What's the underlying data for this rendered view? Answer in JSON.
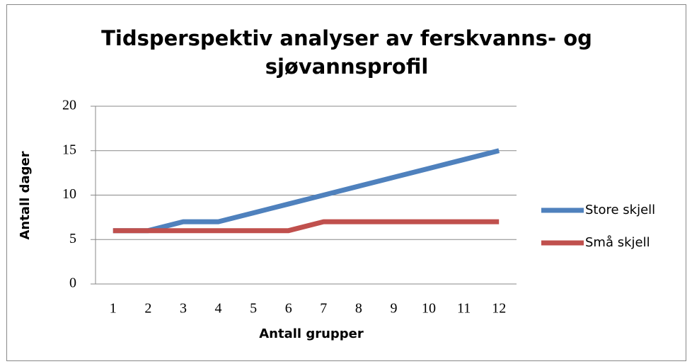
{
  "chart_data": {
    "type": "line",
    "title": "Tidsperspektiv analyser av ferskvanns- og sjøvannsprofil",
    "x_label": "Antall grupper",
    "y_label": "Antall dager",
    "categories": [
      1,
      2,
      3,
      4,
      5,
      6,
      7,
      8,
      9,
      10,
      11,
      12
    ],
    "series": [
      {
        "name": "Store skjell",
        "color": "#4f81bd",
        "values": [
          6,
          6,
          7,
          7,
          8,
          9,
          10,
          11,
          12,
          13,
          14,
          15
        ]
      },
      {
        "name": "Små skjell",
        "color": "#c0504d",
        "values": [
          6,
          6,
          6,
          6,
          6,
          6,
          7,
          7,
          7,
          7,
          7,
          7
        ]
      }
    ],
    "ylim": [
      0,
      20
    ],
    "yticks": [
      0,
      5,
      10,
      15,
      20
    ],
    "grid": true,
    "legend": "right"
  }
}
